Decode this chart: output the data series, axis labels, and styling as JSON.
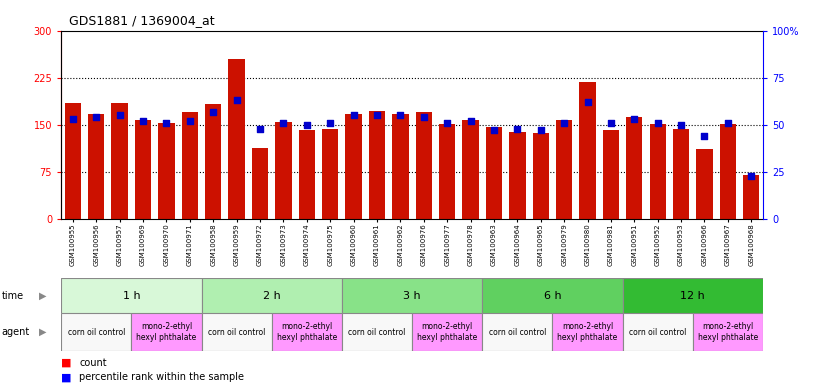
{
  "title": "GDS1881 / 1369004_at",
  "samples": [
    "GSM100955",
    "GSM100956",
    "GSM100957",
    "GSM100969",
    "GSM100970",
    "GSM100971",
    "GSM100958",
    "GSM100959",
    "GSM100972",
    "GSM100973",
    "GSM100974",
    "GSM100975",
    "GSM100960",
    "GSM100961",
    "GSM100962",
    "GSM100976",
    "GSM100977",
    "GSM100978",
    "GSM100963",
    "GSM100964",
    "GSM100965",
    "GSM100979",
    "GSM100980",
    "GSM100981",
    "GSM100951",
    "GSM100952",
    "GSM100953",
    "GSM100966",
    "GSM100967",
    "GSM100968"
  ],
  "counts": [
    185,
    168,
    185,
    158,
    153,
    170,
    183,
    255,
    113,
    155,
    142,
    143,
    168,
    172,
    168,
    170,
    152,
    158,
    147,
    138,
    137,
    157,
    218,
    141,
    163,
    152,
    143,
    112,
    152,
    70
  ],
  "percentiles": [
    53,
    54,
    55,
    52,
    51,
    52,
    57,
    63,
    48,
    51,
    50,
    51,
    55,
    55,
    55,
    54,
    51,
    52,
    47,
    48,
    47,
    51,
    62,
    51,
    53,
    51,
    50,
    44,
    51,
    23
  ],
  "time_groups": [
    {
      "label": "1 h",
      "start": 0,
      "end": 6,
      "color": "#d8f8d8"
    },
    {
      "label": "2 h",
      "start": 6,
      "end": 12,
      "color": "#b0efb0"
    },
    {
      "label": "3 h",
      "start": 12,
      "end": 18,
      "color": "#88e288"
    },
    {
      "label": "6 h",
      "start": 18,
      "end": 24,
      "color": "#60d060"
    },
    {
      "label": "12 h",
      "start": 24,
      "end": 30,
      "color": "#33bb33"
    }
  ],
  "agent_groups": [
    {
      "label": "corn oil control",
      "start": 0,
      "end": 3,
      "color": "#f8f8f8"
    },
    {
      "label": "mono-2-ethyl\nhexyl phthalate",
      "start": 3,
      "end": 6,
      "color": "#ff99ff"
    },
    {
      "label": "corn oil control",
      "start": 6,
      "end": 9,
      "color": "#f8f8f8"
    },
    {
      "label": "mono-2-ethyl\nhexyl phthalate",
      "start": 9,
      "end": 12,
      "color": "#ff99ff"
    },
    {
      "label": "corn oil control",
      "start": 12,
      "end": 15,
      "color": "#f8f8f8"
    },
    {
      "label": "mono-2-ethyl\nhexyl phthalate",
      "start": 15,
      "end": 18,
      "color": "#ff99ff"
    },
    {
      "label": "corn oil control",
      "start": 18,
      "end": 21,
      "color": "#f8f8f8"
    },
    {
      "label": "mono-2-ethyl\nhexyl phthalate",
      "start": 21,
      "end": 24,
      "color": "#ff99ff"
    },
    {
      "label": "corn oil control",
      "start": 24,
      "end": 27,
      "color": "#f8f8f8"
    },
    {
      "label": "mono-2-ethyl\nhexyl phthalate",
      "start": 27,
      "end": 30,
      "color": "#ff99ff"
    }
  ],
  "bar_color": "#cc1100",
  "dot_color": "#0000cc",
  "ylim_left": [
    0,
    300
  ],
  "ylim_right": [
    0,
    100
  ],
  "yticks_left": [
    0,
    75,
    150,
    225,
    300
  ],
  "yticks_right": [
    0,
    25,
    50,
    75,
    100
  ],
  "hlines": [
    75,
    150,
    225
  ],
  "bg_color": "#ffffff"
}
